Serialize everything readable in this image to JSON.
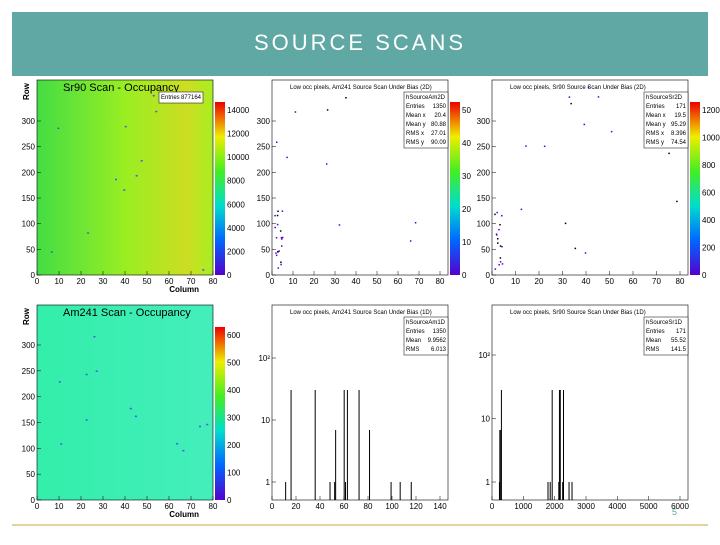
{
  "header": {
    "title": "SOURCE SCANS"
  },
  "page_number": "5",
  "panels": [
    {
      "title": "Sr90 Scan - Occupancy",
      "stats": {
        "name": null,
        "rows": [
          [
            "Entries",
            "877164"
          ]
        ]
      },
      "x_label": "Column",
      "y_label": "Row",
      "xticks": [
        "0",
        "10",
        "20",
        "30",
        "40",
        "50",
        "60",
        "70",
        "80"
      ],
      "yticks": [
        "0",
        "50",
        "100",
        "150",
        "200",
        "250",
        "300"
      ],
      "zticks": [
        "0",
        "2000",
        "4000",
        "6000",
        "8000",
        "10000",
        "12000",
        "14000"
      ]
    },
    {
      "title": "Low occ pixels, Am241 Source Scan Under Bias (2D)",
      "stats": {
        "name": "hSourceAm2D",
        "rows": [
          [
            "Entries",
            "1350"
          ],
          [
            "Mean x",
            "20.4"
          ],
          [
            "Mean y",
            "80.88"
          ],
          [
            "RMS x",
            "27.01"
          ],
          [
            "RMS y",
            "90.09"
          ]
        ]
      },
      "xticks": [
        "0",
        "10",
        "20",
        "30",
        "40",
        "50",
        "60",
        "70",
        "80"
      ],
      "yticks": [
        "0",
        "50",
        "100",
        "150",
        "200",
        "250",
        "300"
      ],
      "zticks": [
        "0",
        "10",
        "20",
        "30",
        "40",
        "50"
      ]
    },
    {
      "title": "Low occ pixels, Sr90 Source Scan Under Bias (2D)",
      "stats": {
        "name": "hSourceSr2D",
        "rows": [
          [
            "Entries",
            "171"
          ],
          [
            "Mean x",
            "19.5"
          ],
          [
            "Mean y",
            "95.29"
          ],
          [
            "RMS x",
            "8.396"
          ],
          [
            "RMS y",
            "74.54"
          ]
        ]
      },
      "xticks": [
        "0",
        "10",
        "20",
        "30",
        "40",
        "50",
        "60",
        "70",
        "80"
      ],
      "yticks": [
        "0",
        "50",
        "100",
        "150",
        "200",
        "250",
        "300"
      ],
      "zticks": [
        "0",
        "200",
        "400",
        "600",
        "800",
        "1000",
        "1200"
      ]
    },
    {
      "title": "Am241 Scan - Occupancy",
      "stats": {
        "name": null,
        "rows": []
      },
      "x_label": "Column",
      "y_label": "Row",
      "xticks": [
        "0",
        "10",
        "20",
        "30",
        "40",
        "50",
        "60",
        "70",
        "80"
      ],
      "yticks": [
        "0",
        "50",
        "100",
        "150",
        "200",
        "250",
        "300"
      ],
      "zticks": [
        "0",
        "100",
        "200",
        "300",
        "400",
        "500",
        "600"
      ]
    },
    {
      "title": "Low occ pixels, Am241 Source Scan Under Bias (1D)",
      "stats": {
        "name": "hSourceAm1D",
        "rows": [
          [
            "Entries",
            "1350"
          ],
          [
            "Mean",
            "9.9562"
          ],
          [
            "RMS",
            "6.013"
          ]
        ]
      },
      "xticks": [
        "0",
        "20",
        "40",
        "60",
        "80",
        "100",
        "120",
        "140"
      ],
      "yticks": [
        "1",
        "10",
        "10²"
      ],
      "zticks": []
    },
    {
      "title": "Low occ pixels, Sr90 Source Scan Under Bias (1D)",
      "stats": {
        "name": "hSourceSr1D",
        "rows": [
          [
            "Entries",
            "171"
          ],
          [
            "Mean",
            "55.52"
          ],
          [
            "RMS",
            "141.5"
          ]
        ]
      },
      "xticks": [
        "0",
        "1000",
        "2000",
        "3000",
        "4000",
        "5000",
        "6000"
      ],
      "yticks": [
        "1",
        "10",
        "10²"
      ],
      "zticks": []
    }
  ]
}
